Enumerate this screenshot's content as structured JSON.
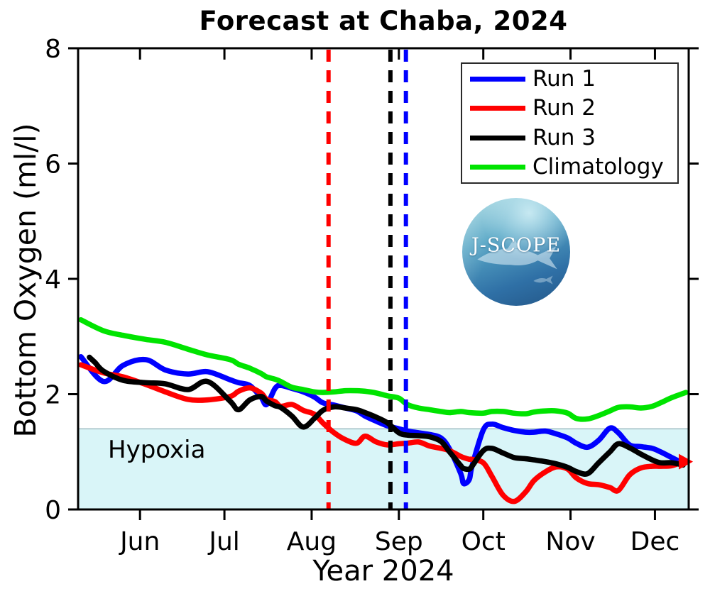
{
  "logo": {
    "text": "J-SCOPE"
  },
  "chart_data": {
    "type": "line",
    "title": "Forecast at Chaba, 2024",
    "xlabel": "Year 2024",
    "ylabel": "Bottom Oxygen (ml/l)",
    "hypoxia_label": "Hypoxia",
    "x_unit": "day_of_year_2024",
    "x_range": [
      131,
      348
    ],
    "ylim": [
      0,
      8
    ],
    "y_ticks": [
      0,
      2,
      4,
      6,
      8
    ],
    "x_ticks": [
      {
        "doy": 153,
        "label": "Jun"
      },
      {
        "doy": 183,
        "label": "Jul"
      },
      {
        "doy": 214,
        "label": "Aug"
      },
      {
        "doy": 245,
        "label": "Sep"
      },
      {
        "doy": 275,
        "label": "Oct"
      },
      {
        "doy": 306,
        "label": "Nov"
      },
      {
        "doy": 336,
        "label": "Dec"
      }
    ],
    "grid": false,
    "hypoxia_threshold": 1.4,
    "hypoxia_fill": "#d9f5f8",
    "hypoxia_edge": "#b6ced2",
    "legend": {
      "position": "top-right",
      "entries": [
        {
          "name": "Run 1",
          "color": "#0000ff"
        },
        {
          "name": "Run 2",
          "color": "#ff0000"
        },
        {
          "name": "Run 3",
          "color": "#000000"
        },
        {
          "name": "Climatology",
          "color": "#00e400"
        }
      ]
    },
    "vertical_dashed_lines": [
      {
        "color": "#ff0000",
        "doy": 220
      },
      {
        "color": "#000000",
        "doy": 242
      },
      {
        "color": "#0000ff",
        "doy": 247.5
      }
    ],
    "series": [
      {
        "name": "Run 1",
        "color": "#0000ff",
        "x": [
          132,
          140,
          147,
          155,
          162,
          170,
          177,
          185,
          188,
          192,
          196,
          198,
          201,
          203,
          207,
          211,
          215,
          218,
          222,
          226,
          230,
          233,
          237,
          241,
          245,
          248,
          252,
          256,
          260,
          263,
          267,
          268,
          270,
          271,
          275,
          278,
          282,
          286,
          290,
          293,
          297,
          301,
          305,
          308,
          312,
          316,
          320,
          323,
          327,
          331,
          335,
          338,
          342,
          346
        ],
        "y": [
          2.65,
          2.22,
          2.5,
          2.6,
          2.42,
          2.35,
          2.39,
          2.25,
          2.2,
          2.15,
          1.95,
          1.82,
          2.1,
          2.15,
          2.1,
          2.04,
          1.95,
          1.85,
          1.81,
          1.76,
          1.71,
          1.62,
          1.53,
          1.45,
          1.4,
          1.36,
          1.33,
          1.3,
          1.24,
          1.05,
          0.62,
          0.45,
          0.52,
          0.75,
          1.38,
          1.48,
          1.42,
          1.37,
          1.34,
          1.34,
          1.36,
          1.31,
          1.24,
          1.15,
          1.08,
          1.2,
          1.41,
          1.33,
          1.12,
          1.09,
          1.06,
          1.0,
          0.9,
          0.8
        ]
      },
      {
        "name": "Run 2",
        "color": "#ff0000",
        "arrow_end": true,
        "x": [
          132,
          140,
          147,
          155,
          162,
          170,
          177,
          185,
          188,
          192,
          196,
          198,
          201,
          203,
          207,
          211,
          215,
          218,
          222,
          226,
          230,
          233,
          237,
          241,
          245,
          248,
          252,
          256,
          260,
          263,
          267,
          268,
          270,
          271,
          275,
          278,
          282,
          286,
          290,
          293,
          297,
          301,
          305,
          308,
          312,
          316,
          320,
          323,
          327,
          331,
          335,
          338,
          342,
          346
        ],
        "y": [
          2.51,
          2.37,
          2.3,
          2.17,
          2.04,
          1.91,
          1.9,
          1.96,
          2.05,
          2.11,
          2.02,
          1.91,
          1.87,
          1.79,
          1.82,
          1.72,
          1.65,
          1.5,
          1.33,
          1.21,
          1.15,
          1.27,
          1.17,
          1.12,
          1.14,
          1.15,
          1.17,
          1.1,
          1.06,
          1.02,
          0.92,
          0.9,
          0.87,
          0.87,
          0.81,
          0.58,
          0.25,
          0.14,
          0.3,
          0.5,
          0.65,
          0.74,
          0.7,
          0.55,
          0.45,
          0.43,
          0.38,
          0.33,
          0.6,
          0.72,
          0.75,
          0.75,
          0.76,
          0.83
        ]
      },
      {
        "name": "Run 3",
        "color": "#000000",
        "x": [
          135,
          137,
          140,
          147,
          155,
          162,
          170,
          177,
          185,
          188,
          192,
          196,
          198,
          201,
          203,
          207,
          211,
          215,
          218,
          222,
          226,
          230,
          233,
          237,
          241,
          245,
          248,
          252,
          256,
          260,
          263,
          267,
          268,
          270,
          271,
          275,
          278,
          282,
          286,
          290,
          293,
          297,
          301,
          305,
          308,
          312,
          316,
          320,
          323,
          327,
          331,
          335,
          338,
          342,
          346
        ],
        "y": [
          2.64,
          2.55,
          2.4,
          2.24,
          2.2,
          2.18,
          2.08,
          2.22,
          1.88,
          1.73,
          1.9,
          1.96,
          1.88,
          1.8,
          1.77,
          1.62,
          1.43,
          1.58,
          1.72,
          1.78,
          1.76,
          1.73,
          1.68,
          1.6,
          1.5,
          1.33,
          1.29,
          1.28,
          1.26,
          1.18,
          1.0,
          0.76,
          0.71,
          0.7,
          0.75,
          1.02,
          1.06,
          0.98,
          0.9,
          0.88,
          0.86,
          0.83,
          0.79,
          0.73,
          0.66,
          0.62,
          0.81,
          1.0,
          1.14,
          1.07,
          0.96,
          0.86,
          0.81,
          0.81,
          0.77
        ]
      },
      {
        "name": "Climatology",
        "color": "#00e400",
        "x": [
          132,
          140,
          147,
          155,
          162,
          170,
          177,
          185,
          188,
          192,
          196,
          198,
          201,
          203,
          207,
          211,
          215,
          218,
          222,
          226,
          230,
          233,
          237,
          241,
          245,
          248,
          252,
          256,
          260,
          263,
          267,
          270,
          275,
          278,
          282,
          286,
          290,
          293,
          297,
          301,
          305,
          308,
          312,
          316,
          320,
          323,
          327,
          331,
          335,
          338,
          342,
          347
        ],
        "y": [
          3.29,
          3.1,
          3.02,
          2.95,
          2.9,
          2.78,
          2.68,
          2.6,
          2.52,
          2.45,
          2.36,
          2.3,
          2.26,
          2.22,
          2.12,
          2.08,
          2.04,
          2.03,
          2.04,
          2.06,
          2.06,
          2.05,
          2.02,
          1.97,
          1.93,
          1.82,
          1.76,
          1.73,
          1.7,
          1.68,
          1.7,
          1.68,
          1.67,
          1.7,
          1.7,
          1.67,
          1.66,
          1.69,
          1.71,
          1.71,
          1.67,
          1.58,
          1.57,
          1.63,
          1.71,
          1.77,
          1.78,
          1.76,
          1.79,
          1.85,
          1.94,
          2.03
        ]
      }
    ]
  }
}
